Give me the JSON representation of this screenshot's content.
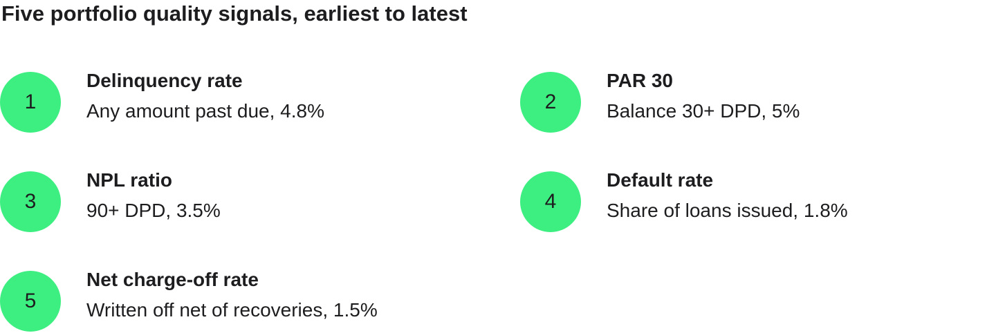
{
  "header": {
    "title": "Five portfolio quality signals, earliest to latest"
  },
  "items": [
    {
      "number": 1,
      "label": "Delinquency rate",
      "description": "Any amount past due, 4.8%"
    },
    {
      "number": 2,
      "label": "PAR 30",
      "description": "Balance 30+ DPD, 5%"
    },
    {
      "number": 3,
      "label": "NPL ratio",
      "description": "90+ DPD, 3.5%"
    },
    {
      "number": 4,
      "label": "Default rate",
      "description": "Share of loans issued, 1.8%"
    },
    {
      "number": 5,
      "label": "Net charge-off rate",
      "description": "Written off net of recoveries, 1.5%"
    }
  ]
}
